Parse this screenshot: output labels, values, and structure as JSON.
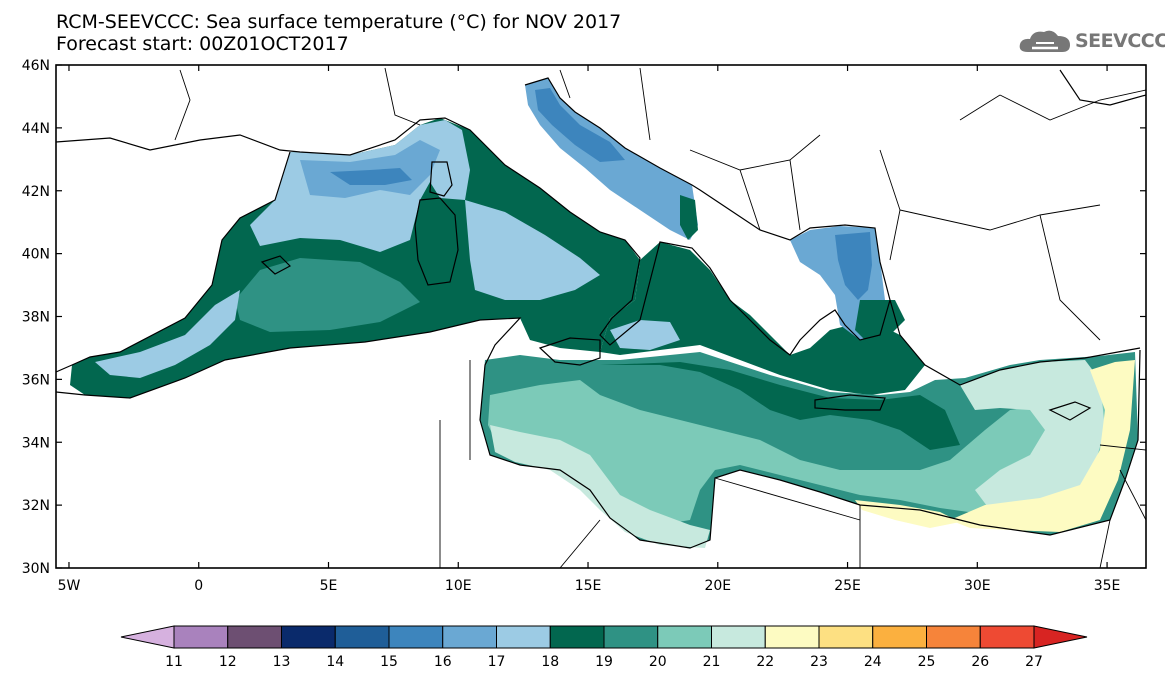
{
  "header": {
    "title_line1": "RCM-SEEVCCC: Sea surface temperature (°C) for NOV 2017",
    "title_line2": "Forecast start: 00Z01OCT2017"
  },
  "logo": {
    "text": "SEEVCCC",
    "icon": "cloud-icon",
    "color": "#777777"
  },
  "axes": {
    "lon_ticks": [
      {
        "value": -5,
        "label": "5W"
      },
      {
        "value": 0,
        "label": "0"
      },
      {
        "value": 5,
        "label": "5E"
      },
      {
        "value": 10,
        "label": "10E"
      },
      {
        "value": 15,
        "label": "15E"
      },
      {
        "value": 20,
        "label": "20E"
      },
      {
        "value": 25,
        "label": "25E"
      },
      {
        "value": 30,
        "label": "30E"
      },
      {
        "value": 35,
        "label": "35E"
      }
    ],
    "lat_ticks": [
      {
        "value": 30,
        "label": "30N"
      },
      {
        "value": 32,
        "label": "32N"
      },
      {
        "value": 34,
        "label": "34N"
      },
      {
        "value": 36,
        "label": "36N"
      },
      {
        "value": 38,
        "label": "38N"
      },
      {
        "value": 40,
        "label": "40N"
      },
      {
        "value": 42,
        "label": "42N"
      },
      {
        "value": 44,
        "label": "44N"
      },
      {
        "value": 46,
        "label": "46N"
      }
    ],
    "lon_range": [
      -5.5,
      36.5
    ],
    "lat_range": [
      30,
      46
    ]
  },
  "colorbar": {
    "ticks": [
      "11",
      "12",
      "13",
      "14",
      "15",
      "16",
      "17",
      "18",
      "19",
      "20",
      "21",
      "22",
      "23",
      "24",
      "25",
      "26",
      "27"
    ],
    "colors": [
      "#d6b1df",
      "#a982bd",
      "#6d4f72",
      "#0a2a6b",
      "#1f5e98",
      "#3d85bd",
      "#6aa8d3",
      "#9ccbe4",
      "#02674f",
      "#2f9284",
      "#7ccab8",
      "#c7e9de",
      "#fdfbc2",
      "#fde082",
      "#fbb03f",
      "#f6843a",
      "#ee4a33",
      "#d82422"
    ]
  }
}
